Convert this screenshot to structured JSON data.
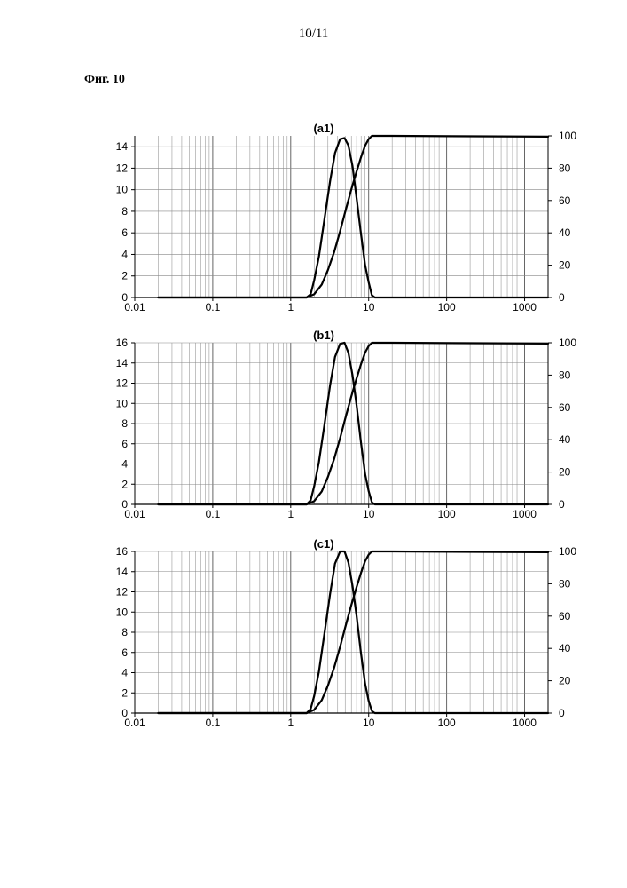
{
  "page": {
    "number": "10/11",
    "figure_label": "Фиг. 10"
  },
  "chart_data": [
    {
      "type": "line",
      "title": "(a1)",
      "x_scale": "log",
      "xlim": [
        0.01,
        2000
      ],
      "x_ticks": [
        0.01,
        0.1,
        1,
        10,
        100,
        1000
      ],
      "x_tick_labels": [
        "0.01",
        "0.1",
        "1",
        "10",
        "100",
        "1000"
      ],
      "ylim_left": [
        0,
        15
      ],
      "y_ticks_left": [
        0,
        2,
        4,
        6,
        8,
        10,
        12,
        14
      ],
      "ylim_right": [
        0,
        100
      ],
      "y_ticks_right": [
        0,
        20,
        40,
        60,
        80,
        100
      ],
      "grid": true,
      "series": [
        {
          "axis": "left",
          "x": [
            0.02,
            1.6,
            1.8,
            2.0,
            2.3,
            2.7,
            3.2,
            3.7,
            4.3,
            4.9,
            5.5,
            6.2,
            7.0,
            8.0,
            9.0,
            10.0,
            11.0,
            12.0,
            2000
          ],
          "y": [
            0,
            0,
            0.3,
            1.6,
            3.8,
            7.2,
            10.8,
            13.4,
            14.7,
            14.8,
            14.1,
            12.2,
            9.2,
            5.8,
            3.0,
            1.4,
            0.2,
            0,
            0
          ]
        },
        {
          "axis": "right",
          "x": [
            0.02,
            1.6,
            2.0,
            2.5,
            3.0,
            3.6,
            4.3,
            5.0,
            6.0,
            7.0,
            8.0,
            9.0,
            10.0,
            11.0,
            20,
            2000
          ],
          "y": [
            0,
            0,
            2,
            8,
            17,
            28,
            41,
            53,
            67,
            78,
            87,
            94,
            98,
            100,
            100,
            99.5
          ]
        }
      ]
    },
    {
      "type": "line",
      "title": "(b1)",
      "x_scale": "log",
      "xlim": [
        0.01,
        2000
      ],
      "x_ticks": [
        0.01,
        0.1,
        1,
        10,
        100,
        1000
      ],
      "x_tick_labels": [
        "0.01",
        "0.1",
        "1",
        "10",
        "100",
        "1000"
      ],
      "ylim_left": [
        0,
        16
      ],
      "y_ticks_left": [
        0,
        2,
        4,
        6,
        8,
        10,
        12,
        14,
        16
      ],
      "ylim_right": [
        0,
        100
      ],
      "y_ticks_right": [
        0,
        20,
        40,
        60,
        80,
        100
      ],
      "grid": true,
      "series": [
        {
          "axis": "left",
          "x": [
            0.02,
            1.6,
            1.8,
            2.0,
            2.3,
            2.7,
            3.2,
            3.7,
            4.3,
            4.9,
            5.5,
            6.2,
            7.0,
            8.0,
            9.0,
            10.0,
            11.0,
            12.0,
            2000
          ],
          "y": [
            0,
            0,
            0.4,
            1.8,
            4.2,
            7.8,
            11.8,
            14.6,
            15.9,
            16.0,
            15.0,
            12.8,
            9.8,
            6.0,
            3.0,
            1.3,
            0.2,
            0,
            0
          ]
        },
        {
          "axis": "right",
          "x": [
            0.02,
            1.6,
            2.0,
            2.5,
            3.0,
            3.6,
            4.3,
            5.0,
            6.0,
            7.0,
            8.0,
            9.0,
            10.0,
            11.0,
            20,
            2000
          ],
          "y": [
            0,
            0,
            2,
            8,
            17,
            28,
            41,
            53,
            67,
            78,
            87,
            94,
            98,
            100,
            100,
            99.5
          ]
        }
      ]
    },
    {
      "type": "line",
      "title": "(c1)",
      "x_scale": "log",
      "xlim": [
        0.01,
        2000
      ],
      "x_ticks": [
        0.01,
        0.1,
        1,
        10,
        100,
        1000
      ],
      "x_tick_labels": [
        "0.01",
        "0.1",
        "1",
        "10",
        "100",
        "1000"
      ],
      "ylim_left": [
        0,
        16
      ],
      "y_ticks_left": [
        0,
        2,
        4,
        6,
        8,
        10,
        12,
        14,
        16
      ],
      "ylim_right": [
        0,
        100
      ],
      "y_ticks_right": [
        0,
        20,
        40,
        60,
        80,
        100
      ],
      "grid": true,
      "series": [
        {
          "axis": "left",
          "x": [
            0.02,
            1.6,
            1.8,
            2.0,
            2.3,
            2.7,
            3.2,
            3.7,
            4.3,
            4.9,
            5.5,
            6.2,
            7.0,
            8.0,
            9.0,
            10.0,
            11.0,
            12.0,
            2000
          ],
          "y": [
            0,
            0,
            0.4,
            1.7,
            4.1,
            7.8,
            11.8,
            14.8,
            16.0,
            16.0,
            14.9,
            12.6,
            9.6,
            5.8,
            2.9,
            1.2,
            0.2,
            0,
            0
          ]
        },
        {
          "axis": "right",
          "x": [
            0.02,
            1.6,
            2.0,
            2.5,
            3.0,
            3.6,
            4.3,
            5.0,
            6.0,
            7.0,
            8.0,
            9.0,
            10.0,
            11.0,
            20,
            2000
          ],
          "y": [
            0,
            0,
            2,
            8,
            17,
            28,
            41,
            53,
            67,
            78,
            87,
            94,
            98,
            100,
            100,
            99.5
          ]
        }
      ]
    }
  ]
}
